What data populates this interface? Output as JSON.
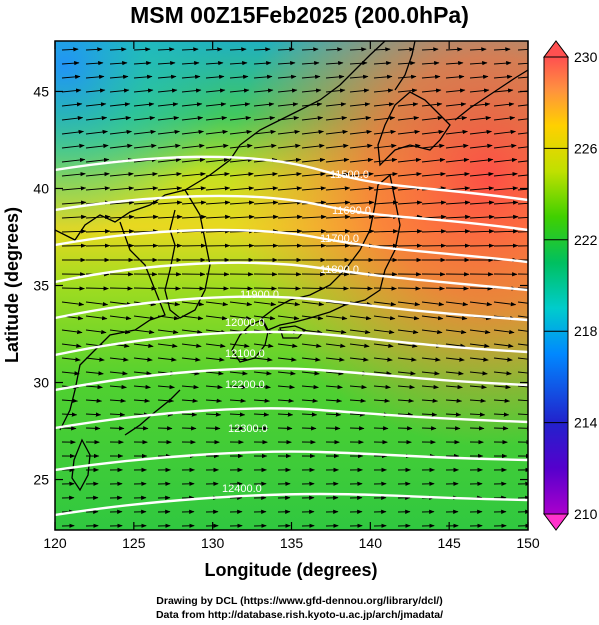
{
  "title": "MSM 00Z15Feb2025 (200.0hPa)",
  "xlabel": "Longitude (degrees)",
  "ylabel": "Latitude  (degrees)",
  "footer": {
    "line1": "Drawing by DCL (https://www.gfd-dennou.org/library/dcl/)",
    "line2": "Data from http://database.rish.kyoto-u.ac.jp/arch/jmadata/"
  },
  "map": {
    "lon_range": [
      120,
      150
    ],
    "lat_range": [
      22.4,
      47.6
    ],
    "x_ticks": [
      "120",
      "125",
      "130",
      "135",
      "140",
      "145",
      "150"
    ],
    "y_ticks": [
      "25",
      "30",
      "35",
      "40",
      "45"
    ],
    "contour_labels": [
      "11500.0",
      "11600.0",
      "11700.0",
      "11800.0",
      "11900.0",
      "12000.0",
      "12100.0",
      "12200.0",
      "12300.0",
      "12400.0"
    ],
    "colors": {
      "contour": "#ffffff",
      "coastline": "#000000",
      "wind_vectors": "#000000"
    }
  },
  "colorbar": {
    "ticks": [
      "230",
      "226",
      "222",
      "218",
      "214",
      "210"
    ],
    "colors": [
      "#ff33cc",
      "#aa00cc",
      "#2222cc",
      "#0088ff",
      "#00cccc",
      "#00c060",
      "#40d000",
      "#c0e000",
      "#ffd000",
      "#ff9040",
      "#ff5050"
    ]
  }
}
